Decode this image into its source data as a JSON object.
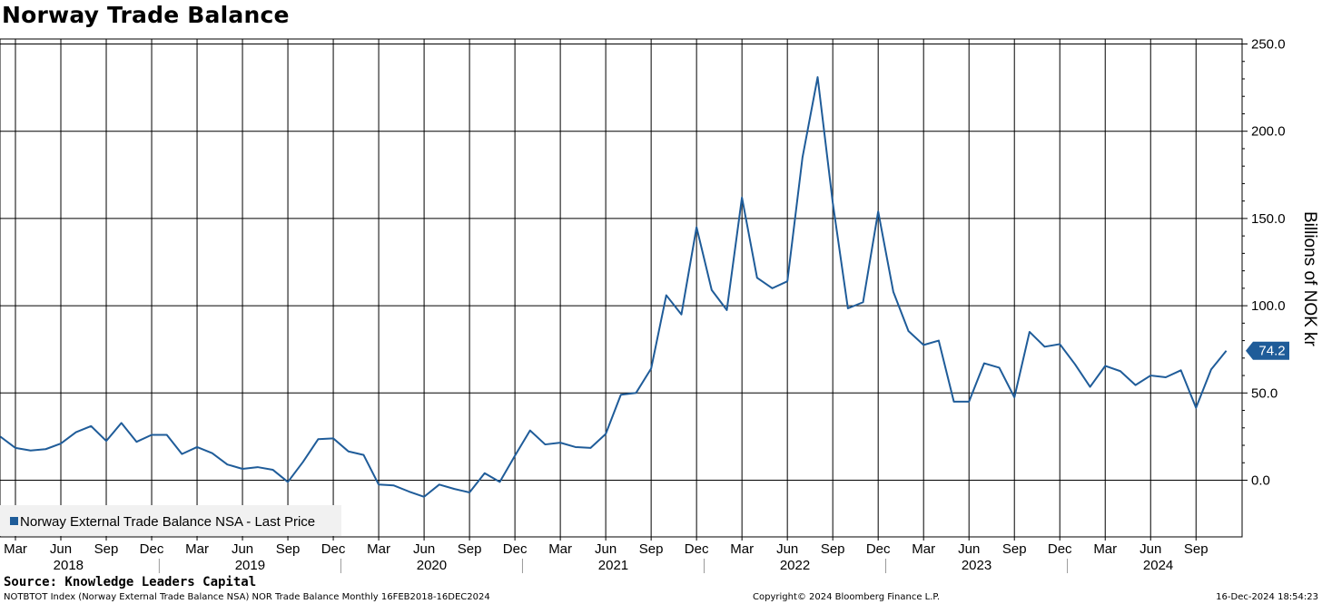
{
  "chart_data": {
    "type": "line",
    "title": "Norway Trade Balance",
    "ylabel": "Billions of NOK kr",
    "xlabel": "",
    "ylim": [
      -33,
      253
    ],
    "yticks": [
      0.0,
      50.0,
      100.0,
      150.0,
      200.0,
      250.0
    ],
    "ytick_labels": [
      "0.0",
      "50.0",
      "100.0",
      "150.0",
      "200.0",
      "250.0"
    ],
    "x_start": "2018-02",
    "x_end": "2024-12",
    "x_month_ticks": [
      {
        "date": "2018-03",
        "label": "Mar"
      },
      {
        "date": "2018-06",
        "label": "Jun"
      },
      {
        "date": "2018-09",
        "label": "Sep"
      },
      {
        "date": "2018-12",
        "label": "Dec"
      },
      {
        "date": "2019-03",
        "label": "Mar"
      },
      {
        "date": "2019-06",
        "label": "Jun"
      },
      {
        "date": "2019-09",
        "label": "Sep"
      },
      {
        "date": "2019-12",
        "label": "Dec"
      },
      {
        "date": "2020-03",
        "label": "Mar"
      },
      {
        "date": "2020-06",
        "label": "Jun"
      },
      {
        "date": "2020-09",
        "label": "Sep"
      },
      {
        "date": "2020-12",
        "label": "Dec"
      },
      {
        "date": "2021-03",
        "label": "Mar"
      },
      {
        "date": "2021-06",
        "label": "Jun"
      },
      {
        "date": "2021-09",
        "label": "Sep"
      },
      {
        "date": "2021-12",
        "label": "Dec"
      },
      {
        "date": "2022-03",
        "label": "Mar"
      },
      {
        "date": "2022-06",
        "label": "Jun"
      },
      {
        "date": "2022-09",
        "label": "Sep"
      },
      {
        "date": "2022-12",
        "label": "Dec"
      },
      {
        "date": "2023-03",
        "label": "Mar"
      },
      {
        "date": "2023-06",
        "label": "Jun"
      },
      {
        "date": "2023-09",
        "label": "Sep"
      },
      {
        "date": "2023-12",
        "label": "Dec"
      },
      {
        "date": "2024-03",
        "label": "Mar"
      },
      {
        "date": "2024-06",
        "label": "Jun"
      },
      {
        "date": "2024-09",
        "label": "Sep"
      }
    ],
    "x_year_labels": [
      "2018",
      "2019",
      "2020",
      "2021",
      "2022",
      "2023",
      "2024"
    ],
    "grid": true,
    "legend_position": "bottom-left",
    "series": [
      {
        "name": "Norway External Trade Balance NSA - Last Price",
        "color": "#1f5c99",
        "last_value_label": "74.2",
        "x": [
          "2018-02",
          "2018-03",
          "2018-04",
          "2018-05",
          "2018-06",
          "2018-07",
          "2018-08",
          "2018-09",
          "2018-10",
          "2018-11",
          "2018-12",
          "2019-01",
          "2019-02",
          "2019-03",
          "2019-04",
          "2019-05",
          "2019-06",
          "2019-07",
          "2019-08",
          "2019-09",
          "2019-10",
          "2019-11",
          "2019-12",
          "2020-01",
          "2020-02",
          "2020-03",
          "2020-04",
          "2020-05",
          "2020-06",
          "2020-07",
          "2020-08",
          "2020-09",
          "2020-10",
          "2020-11",
          "2020-12",
          "2021-01",
          "2021-02",
          "2021-03",
          "2021-04",
          "2021-05",
          "2021-06",
          "2021-07",
          "2021-08",
          "2021-09",
          "2021-10",
          "2021-11",
          "2021-12",
          "2022-01",
          "2022-02",
          "2022-03",
          "2022-04",
          "2022-05",
          "2022-06",
          "2022-07",
          "2022-08",
          "2022-09",
          "2022-10",
          "2022-11",
          "2022-12",
          "2023-01",
          "2023-02",
          "2023-03",
          "2023-04",
          "2023-05",
          "2023-06",
          "2023-07",
          "2023-08",
          "2023-09",
          "2023-10",
          "2023-11",
          "2023-12",
          "2024-01",
          "2024-02",
          "2024-03",
          "2024-04",
          "2024-05",
          "2024-06",
          "2024-07",
          "2024-08",
          "2024-09",
          "2024-10",
          "2024-11"
        ],
        "values": [
          25.0,
          18.5,
          17.0,
          17.8,
          21.0,
          27.5,
          31.0,
          22.5,
          32.8,
          22.0,
          26.0,
          26.0,
          15.0,
          19.0,
          15.5,
          9.0,
          6.5,
          7.5,
          6.0,
          -1.0,
          10.5,
          23.5,
          24.0,
          16.5,
          14.5,
          -2.5,
          -3.0,
          -6.5,
          -9.5,
          -2.5,
          -5.0,
          -7.0,
          4.0,
          -1.0,
          14.0,
          28.5,
          20.5,
          21.5,
          19.0,
          18.5,
          26.5,
          49.0,
          50.0,
          64.0,
          106.0,
          95.0,
          145.0,
          109.0,
          97.5,
          162.0,
          116.0,
          110.0,
          114.0,
          185.0,
          231.0,
          159.0,
          98.5,
          102.0,
          154.0,
          108.0,
          85.5,
          77.5,
          80.0,
          45.0,
          45.0,
          67.0,
          64.5,
          47.5,
          85.0,
          76.5,
          78.0,
          66.5,
          53.5,
          65.5,
          62.5,
          54.5,
          60.0,
          59.0,
          63.0,
          41.5,
          63.5,
          74.2
        ]
      }
    ]
  },
  "footer": {
    "source": "Source: Knowledge Leaders Capital",
    "index_info": "NOTBTOT Index (Norway External Trade Balance NSA) NOR Trade Balance  Monthly 16FEB2018-16DEC2024",
    "copyright": "Copyright© 2024 Bloomberg Finance L.P.",
    "timestamp": "16-Dec-2024 18:54:23"
  }
}
